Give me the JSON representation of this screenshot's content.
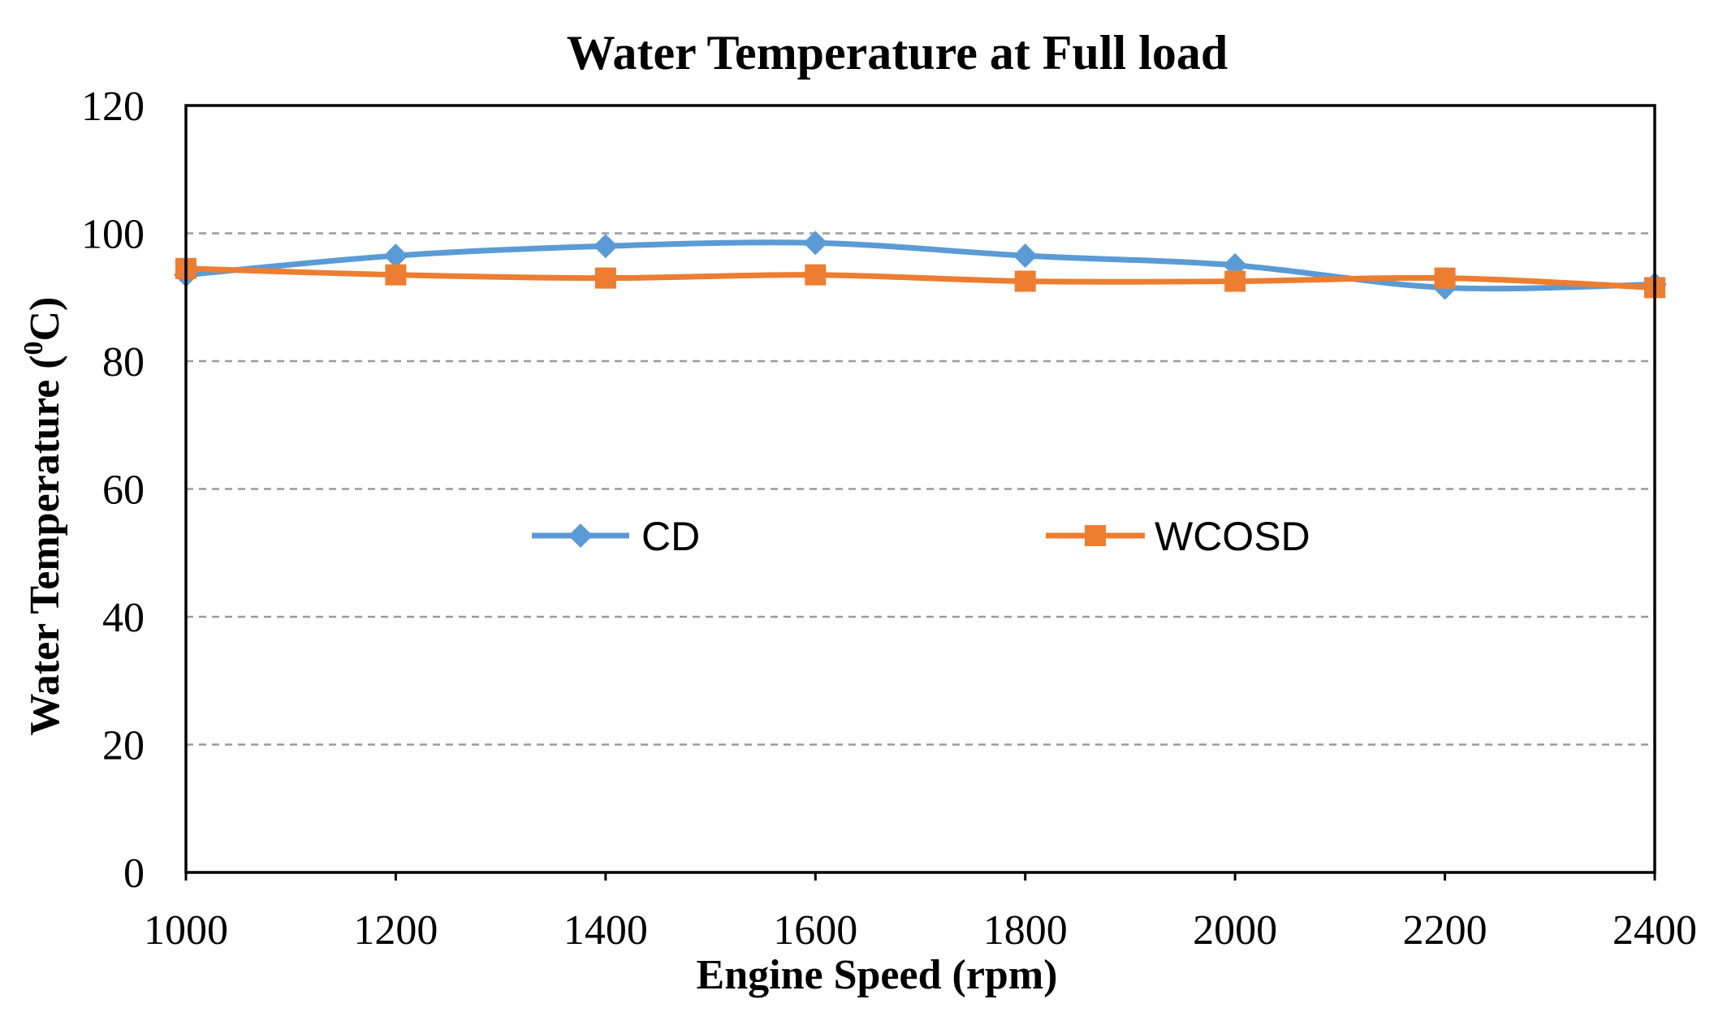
{
  "chart_data": {
    "type": "line",
    "title": "Water Temperature at Full load",
    "xlabel": "Engine Speed (rpm)",
    "ylabel_main": "Water Temperature (",
    "ylabel_sup": "0",
    "ylabel_unit": "C)",
    "x": [
      1000,
      1200,
      1400,
      1600,
      1800,
      2000,
      2200,
      2400
    ],
    "x_tick_labels": [
      "1000",
      "1200",
      "1400",
      "1600",
      "1800",
      "2000",
      "2200",
      "2400"
    ],
    "y_tick_labels": [
      "0",
      "20",
      "40",
      "60",
      "80",
      "100",
      "120"
    ],
    "y_ticks": [
      0,
      20,
      40,
      60,
      80,
      100,
      120
    ],
    "xlim": [
      1000,
      2400
    ],
    "ylim": [
      0,
      120
    ],
    "grid": "horizontal-dashed",
    "legend_position": "center",
    "series": [
      {
        "name": "CD",
        "marker": "diamond",
        "color": "#5B9BD5",
        "values": [
          93.5,
          96.5,
          98.0,
          98.5,
          96.5,
          95.0,
          91.5,
          92.0
        ]
      },
      {
        "name": "WCOSD",
        "marker": "square",
        "color": "#ED7D31",
        "values": [
          94.5,
          93.5,
          93.0,
          93.5,
          92.5,
          92.5,
          93.0,
          91.5
        ]
      }
    ]
  }
}
